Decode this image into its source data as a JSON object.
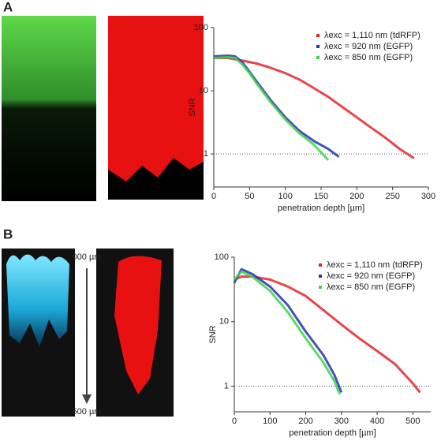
{
  "figure": {
    "label_a": "A",
    "label_b": "B",
    "depth_top": "000 µm",
    "depth_bottom": "500 µm"
  },
  "chart_data": [
    {
      "type": "line",
      "y_label": "SNR",
      "x_label": "penetration depth [µm]",
      "log_scale": "y",
      "xlim": [
        0,
        300
      ],
      "ylim": [
        0.3,
        100
      ],
      "xticks": [
        0,
        50,
        100,
        150,
        200,
        250,
        300
      ],
      "yticks": [
        1,
        10,
        100
      ],
      "reference_line": 1,
      "legend": "upper right",
      "series": [
        {
          "name": "λexc = 1,110 nm (tdRFP)",
          "color": "#e8232a",
          "x": [
            0,
            20,
            40,
            60,
            80,
            100,
            120,
            140,
            160,
            180,
            200,
            220,
            240,
            260,
            280
          ],
          "values": [
            33,
            33,
            30,
            27,
            23,
            19,
            15,
            11,
            8,
            5.5,
            3.8,
            2.6,
            1.8,
            1.2,
            0.85
          ]
        },
        {
          "name": "λexc = 920 nm (EGFP)",
          "color": "#2433b0",
          "x": [
            0,
            20,
            30,
            40,
            50,
            60,
            80,
            100,
            120,
            140,
            160,
            175
          ],
          "values": [
            35,
            36,
            35,
            28,
            20,
            14,
            7,
            3.8,
            2.3,
            1.6,
            1.2,
            0.9
          ]
        },
        {
          "name": "λexc = 850 nm (EGFP)",
          "color": "#3fd24a",
          "x": [
            0,
            20,
            30,
            40,
            50,
            60,
            80,
            100,
            120,
            140,
            160
          ],
          "values": [
            33,
            34,
            33,
            26,
            19,
            13,
            6.5,
            3.5,
            2.1,
            1.4,
            0.8
          ]
        }
      ]
    },
    {
      "type": "line",
      "y_label": "SNR",
      "x_label": "penetration depth [µm]",
      "log_scale": "y",
      "xlim": [
        0,
        550
      ],
      "ylim": [
        0.4,
        100
      ],
      "xticks": [
        0,
        100,
        200,
        300,
        400,
        500
      ],
      "yticks": [
        1,
        10,
        100
      ],
      "reference_line": 1,
      "legend": "upper right",
      "series": [
        {
          "name": "λexc = 1,110 nm (tdRFP)",
          "color": "#e8232a",
          "x": [
            0,
            20,
            50,
            100,
            150,
            200,
            250,
            300,
            350,
            400,
            450,
            500,
            520
          ],
          "values": [
            45,
            50,
            50,
            45,
            35,
            25,
            15,
            9,
            5.5,
            3.5,
            2.2,
            1.1,
            0.8
          ]
        },
        {
          "name": "λexc = 920 nm (EGFP)",
          "color": "#2433b0",
          "x": [
            0,
            20,
            50,
            100,
            150,
            200,
            250,
            280,
            300
          ],
          "values": [
            40,
            65,
            55,
            35,
            18,
            7,
            3,
            1.5,
            0.8
          ]
        },
        {
          "name": "λexc = 850 nm (EGFP)",
          "color": "#3fd24a",
          "x": [
            0,
            20,
            50,
            100,
            150,
            200,
            250,
            280,
            295
          ],
          "values": [
            45,
            60,
            50,
            30,
            14,
            5.5,
            2.3,
            1.2,
            0.75
          ]
        }
      ]
    }
  ]
}
